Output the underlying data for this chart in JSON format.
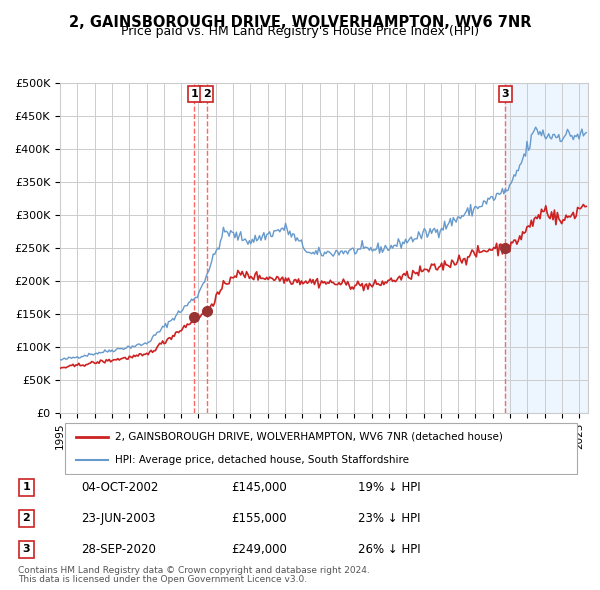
{
  "title": "2, GAINSBOROUGH DRIVE, WOLVERHAMPTON, WV6 7NR",
  "subtitle": "Price paid vs. HM Land Registry's House Price Index (HPI)",
  "background_color": "#ffffff",
  "plot_bg_color": "#ffffff",
  "grid_color": "#cccccc",
  "hpi_color": "#6699cc",
  "hpi_fill_color": "#ddeeff",
  "price_color": "#cc2222",
  "sale_marker_color": "#993333",
  "vline_color": "#ff6666",
  "ylabel_prefix": "£",
  "ytick_labels": [
    "0",
    "50K",
    "100K",
    "150K",
    "200K",
    "250K",
    "300K",
    "350K",
    "400K",
    "450K",
    "500K"
  ],
  "ytick_values": [
    0,
    50000,
    100000,
    150000,
    200000,
    250000,
    300000,
    350000,
    400000,
    450000,
    500000
  ],
  "xmin": 1995.0,
  "xmax": 2025.5,
  "ymin": 0,
  "ymax": 500000,
  "sales": [
    {
      "label": "1",
      "date_str": "04-OCT-2002",
      "year": 2002.75,
      "price": 145000,
      "pct": "19%",
      "direction": "↓"
    },
    {
      "label": "2",
      "date_str": "23-JUN-2003",
      "year": 2003.47,
      "price": 155000,
      "pct": "23%",
      "direction": "↓"
    },
    {
      "label": "3",
      "date_str": "28-SEP-2020",
      "year": 2020.73,
      "price": 249000,
      "pct": "26%",
      "direction": "↓"
    }
  ],
  "legend_line1": "2, GAINSBOROUGH DRIVE, WOLVERHAMPTON, WV6 7NR (detached house)",
  "legend_line2": "HPI: Average price, detached house, South Staffordshire",
  "footnote1": "Contains HM Land Registry data © Crown copyright and database right 2024.",
  "footnote2": "This data is licensed under the Open Government Licence v3.0.",
  "shade_start": 2020.73,
  "shade_end": 2025.5
}
